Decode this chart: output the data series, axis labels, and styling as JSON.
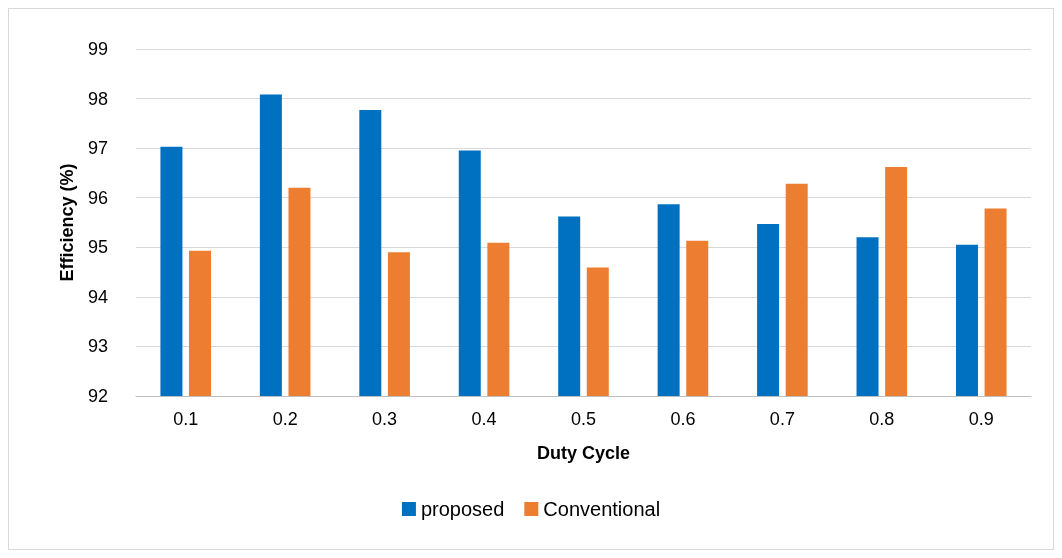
{
  "chart_data": {
    "type": "bar",
    "xlabel": "Duty Cycle",
    "ylabel": "Efficiency (%)",
    "categories": [
      "0.1",
      "0.2",
      "0.3",
      "0.4",
      "0.5",
      "0.6",
      "0.7",
      "0.8",
      "0.9"
    ],
    "series": [
      {
        "name": "proposed",
        "color": "#0070c0",
        "values": [
          97.03,
          98.08,
          97.77,
          96.95,
          95.62,
          95.87,
          95.47,
          95.2,
          95.05
        ]
      },
      {
        "name": "Conventional",
        "color": "#ed7d31",
        "values": [
          94.93,
          96.2,
          94.9,
          95.09,
          94.59,
          95.13,
          96.28,
          96.62,
          95.78
        ]
      }
    ],
    "ylim": [
      92,
      99
    ],
    "yticks": [
      92,
      93,
      94,
      95,
      96,
      97,
      98,
      99
    ],
    "grid": "y",
    "legend": "bottom"
  }
}
